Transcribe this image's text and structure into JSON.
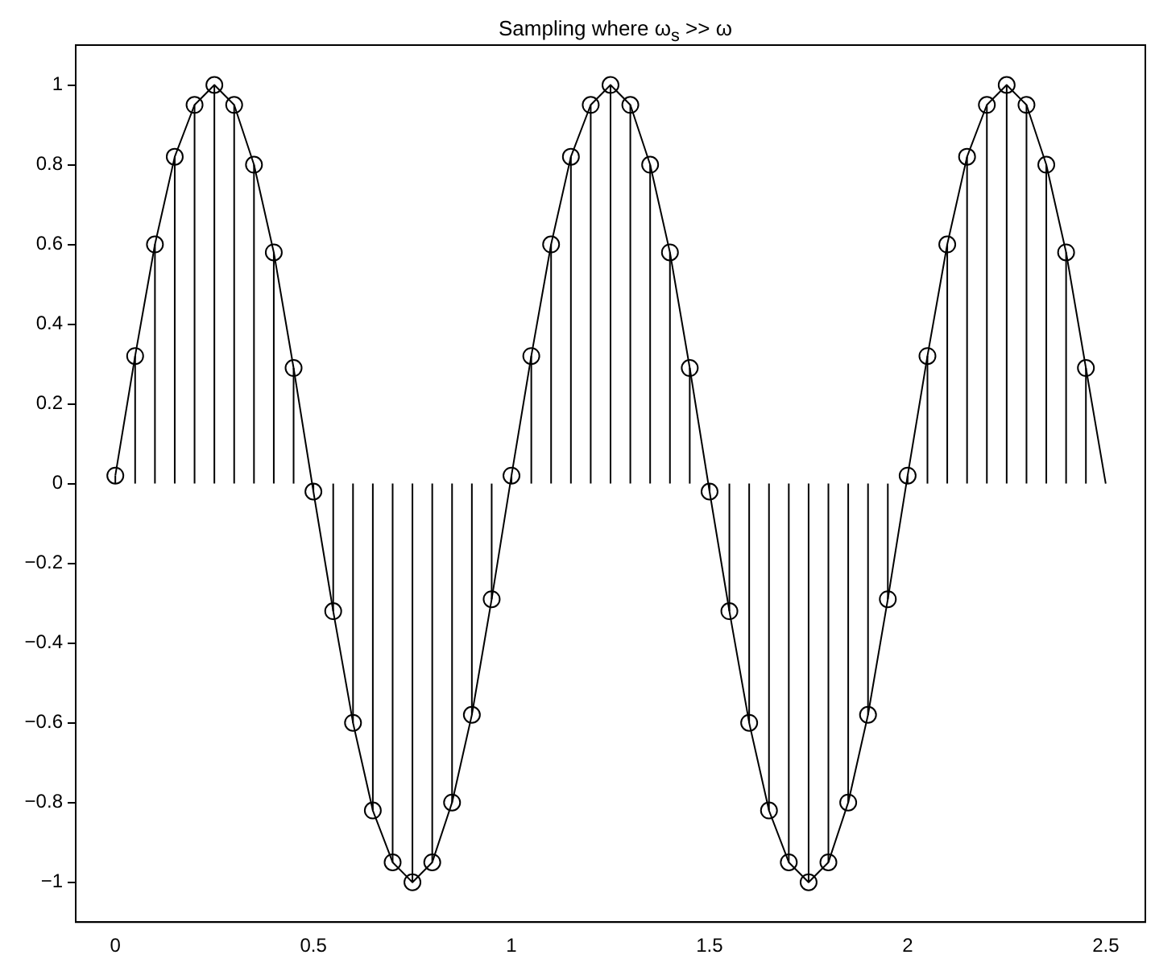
{
  "chart_data": {
    "type": "line",
    "title": "Sampling where ω$_{s}$ >> ω",
    "xlim": [
      -0.1,
      2.6
    ],
    "xticks": [
      0,
      0.5,
      1,
      1.5,
      2,
      2.5
    ],
    "ylim": [
      -1.1,
      1.1
    ],
    "yticks": [
      {
        "value": -1,
        "label": "−1"
      },
      {
        "value": -0.8,
        "label": "−0.8"
      },
      {
        "value": -0.6,
        "label": "−0.6"
      },
      {
        "value": -0.4,
        "label": "−0.4"
      },
      {
        "value": -0.2,
        "label": "−0.2"
      },
      0,
      0.2,
      0.4,
      0.6,
      0.8,
      1
    ],
    "grid": false,
    "legend": false,
    "series": [
      {
        "type": "line",
        "color": "#000000",
        "marker": "none",
        "x": [
          0,
          0.05,
          0.1,
          0.15,
          0.2,
          0.25,
          0.3,
          0.35,
          0.4,
          0.45,
          0.5,
          0.55,
          0.6,
          0.65,
          0.7,
          0.75,
          0.8,
          0.85,
          0.9,
          0.95,
          1,
          1.05,
          1.1,
          1.15,
          1.2,
          1.25,
          1.3,
          1.35,
          1.4,
          1.45,
          1.5,
          1.55,
          1.6,
          1.65,
          1.7,
          1.75,
          1.8,
          1.85,
          1.9,
          1.95,
          2,
          2.05,
          2.1,
          2.15,
          2.2,
          2.25,
          2.3,
          2.35,
          2.4,
          2.45,
          2.5
        ],
        "values": [
          0.02,
          0.32,
          0.6,
          0.82,
          0.95,
          1,
          0.95,
          0.8,
          0.58,
          0.29,
          -0.02,
          -0.32,
          -0.6,
          -0.82,
          -0.95,
          -1,
          -0.95,
          -0.8,
          -0.58,
          -0.29,
          0.02,
          0.32,
          0.6,
          0.82,
          0.95,
          1,
          0.95,
          0.8,
          0.58,
          0.29,
          -0.02,
          -0.32,
          -0.6,
          -0.82,
          -0.95,
          -1,
          -0.95,
          -0.8,
          -0.58,
          -0.29,
          0.02,
          0.32,
          0.6,
          0.82,
          0.95,
          1,
          0.95,
          0.8,
          0.58,
          0.29,
          0
        ]
      },
      {
        "type": "lollipop",
        "color": "#000000",
        "marker": "circle",
        "x": [
          0,
          0.05,
          0.1,
          0.15,
          0.2,
          0.25,
          0.3,
          0.35,
          0.4,
          0.45,
          0.5,
          0.55,
          0.6,
          0.65,
          0.7,
          0.75,
          0.8,
          0.85,
          0.9,
          0.95,
          1,
          1.05,
          1.1,
          1.15,
          1.2,
          1.25,
          1.3,
          1.35,
          1.4,
          1.45,
          1.5,
          1.55,
          1.6,
          1.65,
          1.7,
          1.75,
          1.8,
          1.85,
          1.9,
          1.95,
          2,
          2.05,
          2.1,
          2.15,
          2.2,
          2.25,
          2.3,
          2.35,
          2.4,
          2.45
        ],
        "values": [
          0.02,
          0.32,
          0.6,
          0.82,
          0.95,
          1,
          0.95,
          0.8,
          0.58,
          0.29,
          -0.02,
          -0.32,
          -0.6,
          -0.82,
          -0.95,
          -1,
          -0.95,
          -0.8,
          -0.58,
          -0.29,
          0.02,
          0.32,
          0.6,
          0.82,
          0.95,
          1,
          0.95,
          0.8,
          0.58,
          0.29,
          -0.02,
          -0.32,
          -0.6,
          -0.82,
          -0.95,
          -1,
          -0.95,
          -0.8,
          -0.58,
          -0.29,
          0.02,
          0.32,
          0.6,
          0.82,
          0.95,
          1,
          0.95,
          0.8,
          0.58,
          0.29
        ]
      }
    ]
  }
}
